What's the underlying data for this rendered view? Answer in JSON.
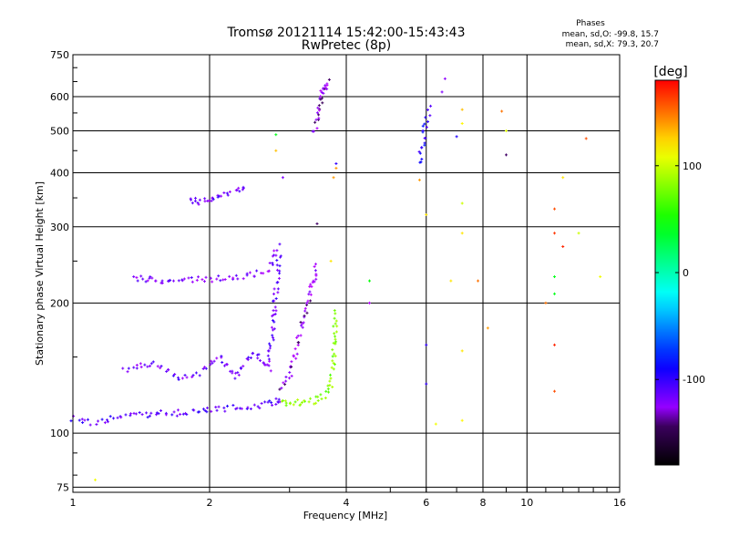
{
  "header": {
    "title_line1": "Tromsø 20121114 15:42:00-15:43:43",
    "title_line2": "RwPretec (8p)"
  },
  "stats": {
    "heading": "Phases",
    "line_o": "mean, sd,O: -99.8, 15.7",
    "line_x": "mean, sd,X:  79.3, 20.7"
  },
  "colorbar": {
    "label": "[deg]",
    "ticks": [
      {
        "value": 100,
        "label": "100"
      },
      {
        "value": 0,
        "label": "0"
      },
      {
        "value": -100,
        "label": "-100"
      }
    ],
    "range": [
      -180,
      180
    ]
  },
  "chart_data": {
    "type": "scatter",
    "xlabel": "Frequency [MHz]",
    "ylabel": "Stationary phase Virtual Height [km]",
    "x_scale": "log",
    "y_scale": "log",
    "xlim": [
      1,
      16
    ],
    "ylim": [
      73,
      750
    ],
    "grid": true,
    "x_ticks": [
      {
        "value": 1,
        "label": "1"
      },
      {
        "value": 2,
        "label": "2"
      },
      {
        "value": 4,
        "label": "4"
      },
      {
        "value": 6,
        "label": "6"
      },
      {
        "value": 8,
        "label": "8"
      },
      {
        "value": 10,
        "label": "10"
      },
      {
        "value": 16,
        "label": "16"
      }
    ],
    "y_ticks": [
      {
        "value": 75,
        "label": "75"
      },
      {
        "value": 100,
        "label": "100"
      },
      {
        "value": 200,
        "label": "200"
      },
      {
        "value": 300,
        "label": "300"
      },
      {
        "value": 400,
        "label": "400"
      },
      {
        "value": 500,
        "label": "500"
      },
      {
        "value": 600,
        "label": "600"
      },
      {
        "value": 750,
        "label": "750"
      }
    ],
    "traces": [
      {
        "x": [
          1.0,
          1.1,
          1.2,
          1.4,
          1.6,
          1.8,
          2.0,
          2.2,
          2.4,
          2.6,
          2.8,
          2.9
        ],
        "y": [
          108,
          106,
          108,
          110,
          111,
          112,
          113,
          114,
          115,
          116,
          118,
          120
        ],
        "phase": -110
      },
      {
        "x": [
          1.3,
          1.5,
          1.7,
          1.9,
          2.1,
          2.3,
          2.5,
          2.7,
          2.85
        ],
        "y": [
          140,
          145,
          135,
          138,
          150,
          135,
          155,
          140,
          260
        ],
        "phase": -115
      },
      {
        "x": [
          1.35,
          1.45,
          1.55,
          1.7,
          1.9,
          2.1,
          2.3,
          2.5,
          2.7,
          2.85
        ],
        "y": [
          228,
          227,
          226,
          225,
          226,
          228,
          229,
          232,
          240,
          275
        ],
        "phase": -120
      },
      {
        "x": [
          1.8,
          1.9,
          2.0,
          2.1,
          2.3,
          2.4
        ],
        "y": [
          345,
          343,
          348,
          350,
          365,
          368
        ],
        "phase": -115
      },
      {
        "x": [
          2.85,
          3.0,
          3.1,
          3.2,
          3.3,
          3.35,
          3.4,
          3.45
        ],
        "y": [
          125,
          135,
          155,
          180,
          200,
          215,
          230,
          250
        ],
        "phase": -130
      },
      {
        "x": [
          2.9,
          3.0,
          3.2,
          3.4,
          3.6,
          3.7,
          3.75,
          3.8
        ],
        "y": [
          118,
          117,
          118,
          119,
          122,
          130,
          150,
          195
        ],
        "phase": 80
      },
      {
        "x": [
          3.4,
          3.45,
          3.5,
          3.55,
          3.6,
          3.65
        ],
        "y": [
          500,
          540,
          580,
          610,
          630,
          650
        ],
        "phase": -130
      },
      {
        "x": [
          5.8,
          5.9,
          6.0,
          6.1
        ],
        "y": [
          420,
          470,
          520,
          570
        ],
        "phase": -95
      }
    ],
    "points": [
      {
        "x": 1.12,
        "y": 78,
        "phase": 110
      },
      {
        "x": 4.5,
        "y": 200,
        "phase": -135
      },
      {
        "x": 4.5,
        "y": 225,
        "phase": 45
      },
      {
        "x": 6.3,
        "y": 105,
        "phase": 110
      },
      {
        "x": 6.5,
        "y": 615,
        "phase": -120
      },
      {
        "x": 6.6,
        "y": 660,
        "phase": -125
      },
      {
        "x": 6.8,
        "y": 225,
        "phase": 120
      },
      {
        "x": 7.0,
        "y": 485,
        "phase": -95
      },
      {
        "x": 7.2,
        "y": 560,
        "phase": 130
      },
      {
        "x": 7.2,
        "y": 520,
        "phase": 115
      },
      {
        "x": 7.2,
        "y": 340,
        "phase": 100
      },
      {
        "x": 7.2,
        "y": 290,
        "phase": 120
      },
      {
        "x": 7.2,
        "y": 155,
        "phase": 120
      },
      {
        "x": 7.2,
        "y": 107,
        "phase": 115
      },
      {
        "x": 7.8,
        "y": 225,
        "phase": 150
      },
      {
        "x": 8.2,
        "y": 175,
        "phase": 140
      },
      {
        "x": 8.8,
        "y": 555,
        "phase": 150
      },
      {
        "x": 9.0,
        "y": 500,
        "phase": 105
      },
      {
        "x": 9.0,
        "y": 440,
        "phase": -140
      },
      {
        "x": 11.0,
        "y": 200,
        "phase": 150
      },
      {
        "x": 11.5,
        "y": 330,
        "phase": 160
      },
      {
        "x": 11.5,
        "y": 290,
        "phase": 165
      },
      {
        "x": 11.5,
        "y": 230,
        "phase": 40
      },
      {
        "x": 11.5,
        "y": 210,
        "phase": 40
      },
      {
        "x": 11.5,
        "y": 160,
        "phase": 170
      },
      {
        "x": 11.5,
        "y": 125,
        "phase": 160
      },
      {
        "x": 12.0,
        "y": 390,
        "phase": 120
      },
      {
        "x": 12.0,
        "y": 270,
        "phase": 170
      },
      {
        "x": 13.0,
        "y": 290,
        "phase": 100
      },
      {
        "x": 13.5,
        "y": 480,
        "phase": 160
      },
      {
        "x": 14.5,
        "y": 230,
        "phase": 110
      },
      {
        "x": 3.75,
        "y": 390,
        "phase": 140
      },
      {
        "x": 3.8,
        "y": 420,
        "phase": -100
      },
      {
        "x": 3.8,
        "y": 410,
        "phase": 140
      },
      {
        "x": 3.45,
        "y": 305,
        "phase": -140
      },
      {
        "x": 3.7,
        "y": 250,
        "phase": 120
      },
      {
        "x": 5.8,
        "y": 385,
        "phase": 140
      },
      {
        "x": 6.0,
        "y": 320,
        "phase": 120
      },
      {
        "x": 6.0,
        "y": 160,
        "phase": -100
      },
      {
        "x": 6.0,
        "y": 130,
        "phase": -100
      },
      {
        "x": 2.8,
        "y": 490,
        "phase": 40
      },
      {
        "x": 2.8,
        "y": 450,
        "phase": 130
      },
      {
        "x": 2.9,
        "y": 390,
        "phase": -120
      }
    ]
  }
}
